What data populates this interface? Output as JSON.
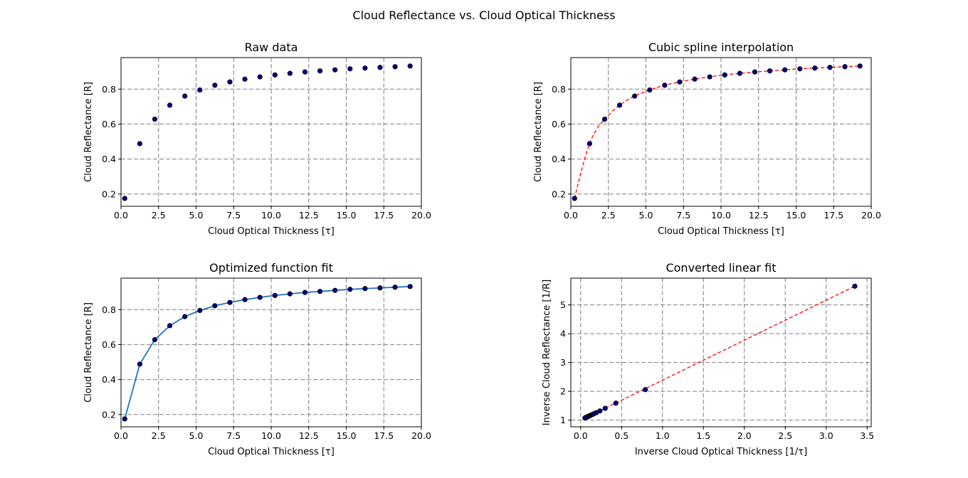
{
  "figure": {
    "suptitle": "Cloud Reflectance vs. Cloud Optical Thickness"
  },
  "colors": {
    "marker_fill": "#00008b",
    "marker_edge": "#000000",
    "spline": "#ff0000",
    "fit_line": "#1f77b4",
    "grid": "#808080"
  },
  "chart_data": [
    {
      "id": "raw",
      "type": "scatter",
      "title": "Raw data",
      "xlabel": "Cloud Optical Thickness [τ]",
      "ylabel": "Cloud Reflectance [R]",
      "xlim": [
        0,
        20
      ],
      "ylim": [
        0.13,
        0.98
      ],
      "xticks": [
        0,
        2.5,
        5,
        7.5,
        10,
        12.5,
        15,
        17.5,
        20
      ],
      "xtick_labels": [
        "0.0",
        "2.5",
        "5.0",
        "7.5",
        "10.0",
        "12.5",
        "15.0",
        "17.5",
        "20.0"
      ],
      "yticks": [
        0.2,
        0.4,
        0.6,
        0.8
      ],
      "ytick_labels": [
        "0.2",
        "0.4",
        "0.6",
        "0.8"
      ],
      "grid": true,
      "series": [
        {
          "x": [
            0.25,
            1.25,
            2.25,
            3.25,
            4.25,
            5.25,
            6.25,
            7.25,
            8.25,
            9.25,
            10.25,
            11.25,
            12.25,
            13.25,
            14.25,
            15.25,
            16.25,
            17.25,
            18.25,
            19.25
          ],
          "y": [
            0.175,
            0.488,
            0.628,
            0.708,
            0.76,
            0.795,
            0.822,
            0.841,
            0.857,
            0.87,
            0.881,
            0.89,
            0.898,
            0.904,
            0.91,
            0.916,
            0.92,
            0.924,
            0.928,
            0.932
          ],
          "style": "markers"
        }
      ]
    },
    {
      "id": "spline",
      "type": "line",
      "title": "Cubic spline interpolation",
      "xlabel": "Cloud Optical Thickness [τ]",
      "ylabel": "Cloud Reflectance [R]",
      "xlim": [
        0,
        20
      ],
      "ylim": [
        0.13,
        0.98
      ],
      "xticks": [
        0,
        2.5,
        5,
        7.5,
        10,
        12.5,
        15,
        17.5,
        20
      ],
      "xtick_labels": [
        "0.0",
        "2.5",
        "5.0",
        "7.5",
        "10.0",
        "12.5",
        "15.0",
        "17.5",
        "20.0"
      ],
      "yticks": [
        0.2,
        0.4,
        0.6,
        0.8
      ],
      "ytick_labels": [
        "0.2",
        "0.4",
        "0.6",
        "0.8"
      ],
      "grid": true,
      "series": [
        {
          "x": [
            0.25,
            1.25,
            2.25,
            3.25,
            4.25,
            5.25,
            6.25,
            7.25,
            8.25,
            9.25,
            10.25,
            11.25,
            12.25,
            13.25,
            14.25,
            15.25,
            16.25,
            17.25,
            18.25,
            19.25
          ],
          "y": [
            0.175,
            0.488,
            0.628,
            0.708,
            0.76,
            0.795,
            0.822,
            0.841,
            0.857,
            0.87,
            0.881,
            0.89,
            0.898,
            0.904,
            0.91,
            0.916,
            0.92,
            0.924,
            0.928,
            0.932
          ],
          "style": "markers+dashed-curve"
        }
      ]
    },
    {
      "id": "optfit",
      "type": "line",
      "title": "Optimized function fit",
      "xlabel": "Cloud Optical Thickness [τ]",
      "ylabel": "Cloud Reflectance [R]",
      "xlim": [
        0,
        20
      ],
      "ylim": [
        0.13,
        0.98
      ],
      "xticks": [
        0,
        2.5,
        5,
        7.5,
        10,
        12.5,
        15,
        17.5,
        20
      ],
      "xtick_labels": [
        "0.0",
        "2.5",
        "5.0",
        "7.5",
        "10.0",
        "12.5",
        "15.0",
        "17.5",
        "20.0"
      ],
      "yticks": [
        0.2,
        0.4,
        0.6,
        0.8
      ],
      "ytick_labels": [
        "0.2",
        "0.4",
        "0.6",
        "0.8"
      ],
      "grid": true,
      "series": [
        {
          "x": [
            0.25,
            1.25,
            2.25,
            3.25,
            4.25,
            5.25,
            6.25,
            7.25,
            8.25,
            9.25,
            10.25,
            11.25,
            12.25,
            13.25,
            14.25,
            15.25,
            16.25,
            17.25,
            18.25,
            19.25
          ],
          "y": [
            0.175,
            0.488,
            0.628,
            0.708,
            0.76,
            0.795,
            0.822,
            0.841,
            0.857,
            0.87,
            0.881,
            0.89,
            0.898,
            0.904,
            0.91,
            0.916,
            0.92,
            0.924,
            0.928,
            0.932
          ],
          "style": "markers+solid-line"
        }
      ]
    },
    {
      "id": "linear",
      "type": "line",
      "title": "Converted linear fit",
      "xlabel": "Inverse Cloud Optical Thickness [1/τ]",
      "ylabel": "Inverse Cloud Reflectance [1/R]",
      "xlim": [
        -0.12,
        3.55
      ],
      "ylim": [
        0.77,
        5.93
      ],
      "xticks": [
        0,
        0.5,
        1,
        1.5,
        2,
        2.5,
        3,
        3.5
      ],
      "xtick_labels": [
        "0.0",
        "0.5",
        "1.0",
        "1.5",
        "2.0",
        "2.5",
        "3.0",
        "3.5"
      ],
      "yticks": [
        1,
        2,
        3,
        4,
        5
      ],
      "ytick_labels": [
        "1",
        "2",
        "3",
        "4",
        "5"
      ],
      "grid": true,
      "series": [
        {
          "x": [
            3.35,
            0.79,
            0.43,
            0.3,
            0.235,
            0.19,
            0.16,
            0.138,
            0.121,
            0.108,
            0.098,
            0.089,
            0.082,
            0.075,
            0.07,
            0.066,
            0.062,
            0.058,
            0.055,
            0.052
          ],
          "y": [
            5.65,
            2.06,
            1.59,
            1.41,
            1.32,
            1.26,
            1.22,
            1.19,
            1.17,
            1.15,
            1.135,
            1.124,
            1.114,
            1.106,
            1.099,
            1.092,
            1.087,
            1.082,
            1.078,
            1.073
          ],
          "style": "markers"
        },
        {
          "x": [
            0.052,
            3.35
          ],
          "y": [
            1.07,
            5.65
          ],
          "style": "dashed-line"
        }
      ]
    }
  ]
}
